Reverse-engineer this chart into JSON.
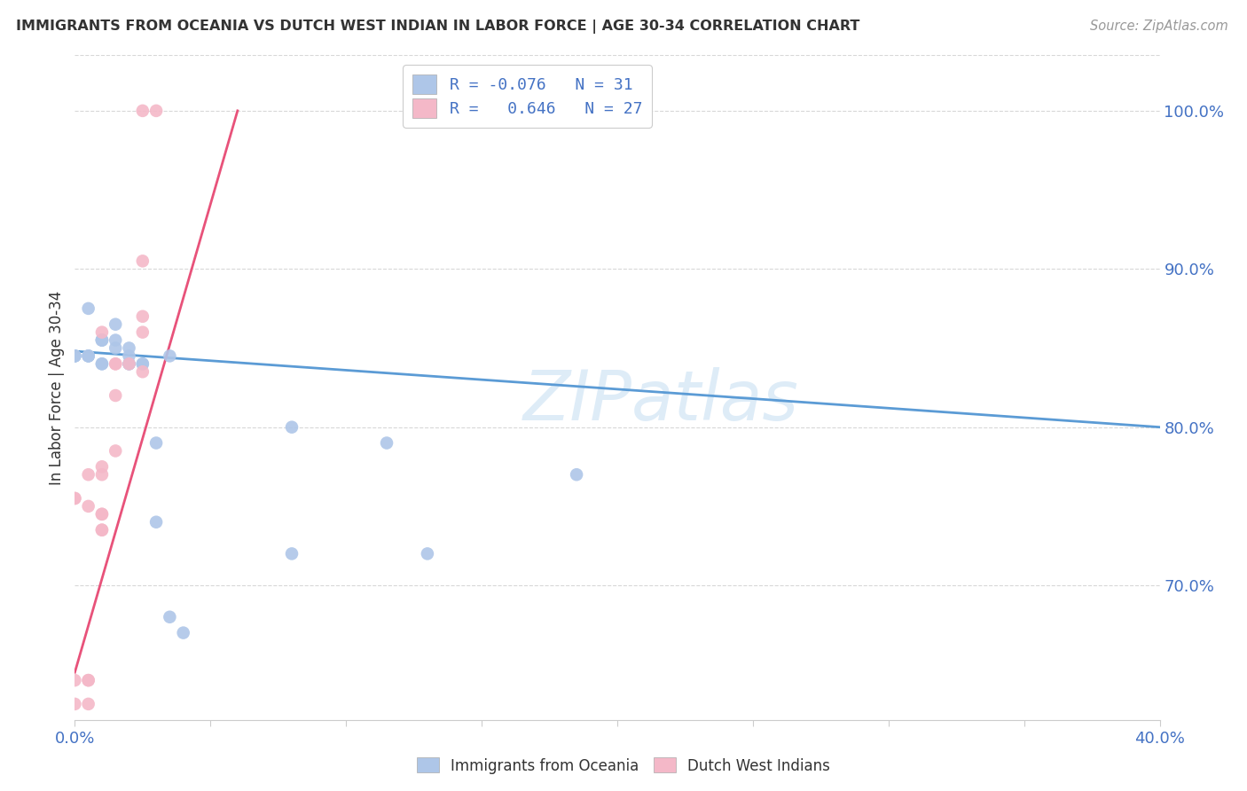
{
  "title": "IMMIGRANTS FROM OCEANIA VS DUTCH WEST INDIAN IN LABOR FORCE | AGE 30-34 CORRELATION CHART",
  "source": "Source: ZipAtlas.com",
  "ylabel": "In Labor Force | Age 30-34",
  "xlim": [
    0.0,
    0.4
  ],
  "ylim": [
    0.615,
    1.035
  ],
  "xtick_positions": [
    0.0,
    0.05,
    0.1,
    0.15,
    0.2,
    0.25,
    0.3,
    0.35,
    0.4
  ],
  "xtick_labels": [
    "0.0%",
    "",
    "",
    "",
    "",
    "",
    "",
    "",
    "40.0%"
  ],
  "yticks_right": [
    1.0,
    0.9,
    0.8,
    0.7
  ],
  "ytick_labels_right": [
    "100.0%",
    "90.0%",
    "80.0%",
    "70.0%"
  ],
  "oceania_color": "#aec6e8",
  "dutch_color": "#f4b8c8",
  "oceania_line_color": "#5b9bd5",
  "dutch_line_color": "#e8527a",
  "text_color": "#4472c4",
  "dark_text": "#333333",
  "source_color": "#999999",
  "grid_color": "#d8d8d8",
  "watermark": "ZIPatlas",
  "watermark_color": "#d0e4f5",
  "legend_text1": "R = -0.076   N = 31",
  "legend_text2": "R =   0.646   N = 27",
  "background_color": "#ffffff",
  "oceania_x": [
    0.0,
    0.0,
    0.0,
    0.005,
    0.005,
    0.005,
    0.005,
    0.01,
    0.01,
    0.01,
    0.01,
    0.01,
    0.015,
    0.015,
    0.015,
    0.02,
    0.02,
    0.02,
    0.02,
    0.025,
    0.025,
    0.03,
    0.03,
    0.035,
    0.035,
    0.04,
    0.08,
    0.08,
    0.115,
    0.13,
    0.185
  ],
  "oceania_y": [
    0.845,
    0.845,
    0.845,
    0.845,
    0.845,
    0.845,
    0.875,
    0.84,
    0.84,
    0.855,
    0.855,
    0.855,
    0.85,
    0.855,
    0.865,
    0.84,
    0.85,
    0.84,
    0.845,
    0.84,
    0.84,
    0.79,
    0.74,
    0.845,
    0.68,
    0.67,
    0.8,
    0.72,
    0.79,
    0.72,
    0.77
  ],
  "dutch_x": [
    0.0,
    0.0,
    0.0,
    0.0,
    0.005,
    0.005,
    0.005,
    0.005,
    0.005,
    0.01,
    0.01,
    0.01,
    0.01,
    0.01,
    0.01,
    0.01,
    0.015,
    0.015,
    0.015,
    0.015,
    0.02,
    0.025,
    0.025,
    0.025,
    0.025,
    0.025,
    0.03
  ],
  "dutch_y": [
    0.625,
    0.64,
    0.755,
    0.755,
    0.625,
    0.64,
    0.64,
    0.75,
    0.77,
    0.735,
    0.735,
    0.745,
    0.745,
    0.77,
    0.775,
    0.86,
    0.82,
    0.84,
    0.84,
    0.785,
    0.84,
    0.835,
    0.86,
    0.87,
    0.905,
    1.0,
    1.0
  ],
  "oceania_line_x": [
    0.0,
    0.4
  ],
  "oceania_line_y": [
    0.848,
    0.8
  ],
  "dutch_line_x": [
    0.0,
    0.06
  ],
  "dutch_line_y": [
    0.645,
    1.0
  ]
}
